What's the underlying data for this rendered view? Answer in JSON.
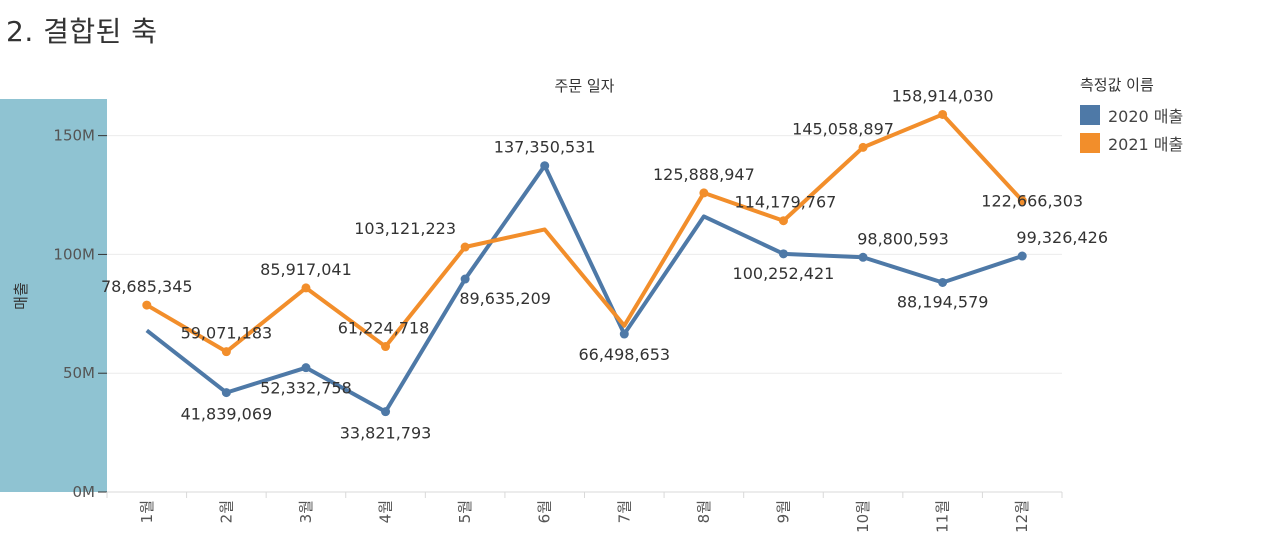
{
  "title": "2. 결합된 축",
  "legend": {
    "title": "측정값 이름",
    "items": [
      {
        "label": "2020 매출",
        "color": "#4e79a7"
      },
      {
        "label": "2021 매출",
        "color": "#f28e2b"
      }
    ]
  },
  "chart_data": {
    "type": "line",
    "title": "",
    "xlabel": "주문 일자",
    "ylabel": "매출",
    "categories": [
      "1월",
      "2월",
      "3월",
      "4월",
      "5월",
      "6월",
      "7월",
      "8월",
      "9월",
      "10월",
      "11월",
      "12월"
    ],
    "y_ticks": [
      "0M",
      "50M",
      "100M",
      "150M"
    ],
    "ylim": [
      0,
      165000000
    ],
    "grid": true,
    "legend_position": "right",
    "series": [
      {
        "name": "2020 매출",
        "color": "#4e79a7",
        "values": [
          68000000,
          41839069,
          52332758,
          33821793,
          89635209,
          137350531,
          66498653,
          116000000,
          100252421,
          98800593,
          88194579,
          99326426
        ],
        "labels": [
          "",
          "41,839,069",
          "52,332,758",
          "33,821,793",
          "89,635,209",
          "137,350,531",
          "66,498,653",
          "",
          "100,252,421",
          "98,800,593",
          "88,194,579",
          "99,326,426"
        ]
      },
      {
        "name": "2021 매출",
        "color": "#f28e2b",
        "values": [
          78685345,
          59071183,
          85917041,
          61224718,
          103121223,
          110500000,
          70000000,
          125888947,
          114179767,
          145058897,
          158914030,
          122666303
        ],
        "labels": [
          "78,685,345",
          "59,071,183",
          "85,917,041",
          "61,224,718",
          "103,121,223",
          "",
          "",
          "125,888,947",
          "114,179,767",
          "145,058,897",
          "158,914,030",
          "122,666,303"
        ]
      }
    ],
    "axis_band_color": "#8fc3d2"
  }
}
